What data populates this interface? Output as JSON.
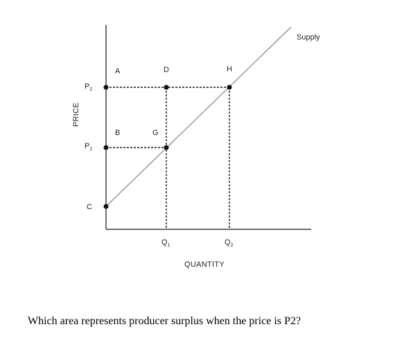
{
  "diagram": {
    "axes": {
      "y_label": "PRICE",
      "x_label": "QUANTITY"
    },
    "curve_label": "Supply",
    "price_ticks": [
      {
        "base": "P",
        "sub": "2"
      },
      {
        "base": "P",
        "sub": "1"
      }
    ],
    "quantity_ticks": [
      {
        "base": "Q",
        "sub": "1"
      },
      {
        "base": "Q",
        "sub": "2"
      }
    ],
    "point_labels": {
      "c": "C",
      "a": "A",
      "d": "D",
      "h": "H",
      "b": "B",
      "g": "G"
    },
    "colors": {
      "supply_line": "#8c8c8c",
      "axes": "#111111",
      "points": "#111111"
    }
  },
  "question": "Which area represents producer surplus when the price is P2?"
}
